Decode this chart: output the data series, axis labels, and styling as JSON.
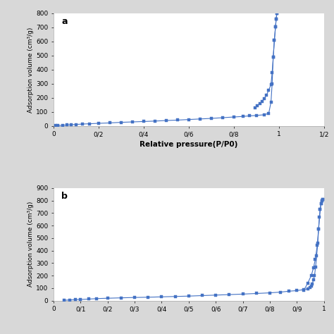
{
  "chart_a": {
    "label": "a",
    "adsorption_x": [
      0.01,
      0.02,
      0.04,
      0.06,
      0.08,
      0.1,
      0.13,
      0.16,
      0.2,
      0.25,
      0.3,
      0.35,
      0.4,
      0.45,
      0.5,
      0.55,
      0.6,
      0.65,
      0.7,
      0.75,
      0.8,
      0.84,
      0.87,
      0.9,
      0.935,
      0.955,
      0.965,
      0.97,
      0.975,
      0.98,
      0.985,
      0.988,
      0.991
    ],
    "adsorption_y": [
      2,
      3,
      5,
      7,
      9,
      11,
      14,
      16,
      19,
      22,
      26,
      29,
      32,
      35,
      39,
      42,
      46,
      50,
      54,
      59,
      64,
      68,
      72,
      75,
      80,
      90,
      170,
      300,
      490,
      610,
      705,
      760,
      800
    ],
    "desorption_x": [
      0.991,
      0.988,
      0.985,
      0.98,
      0.975,
      0.97,
      0.965,
      0.955,
      0.945,
      0.935,
      0.925,
      0.915,
      0.905,
      0.895
    ],
    "desorption_y": [
      800,
      760,
      705,
      610,
      490,
      380,
      295,
      255,
      220,
      195,
      175,
      160,
      145,
      130
    ],
    "xlabel": "Relative pressure(P/P0)",
    "ylabel": "Adsorption volume (cm³/g)",
    "xlim": [
      0,
      1.2
    ],
    "ylim": [
      0,
      800
    ],
    "yticks": [
      0,
      100,
      200,
      300,
      400,
      500,
      600,
      700,
      800
    ],
    "xticks": [
      0.0,
      0.2,
      0.4,
      0.6,
      0.8,
      1.0,
      1.2
    ],
    "xtick_labels": [
      "0",
      "0/2",
      "0/4",
      "0/6",
      "0/8",
      "1",
      "1/2"
    ]
  },
  "chart_b": {
    "label": "b",
    "adsorption_x": [
      0.04,
      0.06,
      0.08,
      0.1,
      0.13,
      0.16,
      0.2,
      0.25,
      0.3,
      0.35,
      0.4,
      0.45,
      0.5,
      0.55,
      0.6,
      0.65,
      0.7,
      0.75,
      0.8,
      0.84,
      0.87,
      0.9,
      0.925,
      0.94,
      0.948,
      0.953,
      0.957,
      0.961,
      0.965,
      0.969,
      0.973,
      0.977,
      0.98,
      0.983,
      0.986,
      0.989,
      0.992,
      0.995
    ],
    "adsorption_y": [
      3,
      5,
      7,
      9,
      12,
      16,
      19,
      22,
      25,
      27,
      30,
      33,
      36,
      40,
      44,
      48,
      52,
      57,
      62,
      68,
      75,
      80,
      88,
      95,
      103,
      115,
      135,
      165,
      200,
      270,
      360,
      460,
      570,
      665,
      730,
      775,
      800,
      810
    ],
    "desorption_x": [
      0.995,
      0.992,
      0.989,
      0.986,
      0.98,
      0.975,
      0.968,
      0.961,
      0.953,
      0.94,
      0.925
    ],
    "desorption_y": [
      810,
      800,
      775,
      730,
      570,
      440,
      330,
      260,
      200,
      140,
      80
    ],
    "xlabel": "",
    "ylabel": "Adsorption volume (cm³/g)",
    "xlim": [
      0,
      1.0
    ],
    "ylim": [
      0,
      900
    ],
    "yticks": [
      0,
      100,
      200,
      300,
      400,
      500,
      600,
      700,
      800,
      900
    ],
    "xticks": [
      0.0,
      0.1,
      0.2,
      0.3,
      0.4,
      0.5,
      0.6,
      0.7,
      0.8,
      0.9,
      1.0
    ],
    "xtick_labels": [
      "0",
      "0/1",
      "0/2",
      "0/3",
      "0/4",
      "0/5",
      "0/6",
      "0/7",
      "0/8",
      "0/9",
      "1"
    ]
  },
  "line_color": "#4472c4",
  "marker_color": "#4472c4",
  "bg_color": "#ffffff",
  "figure_bg": "#d8d8d8"
}
